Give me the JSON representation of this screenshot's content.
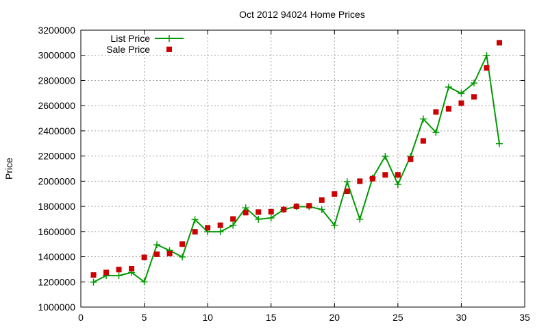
{
  "chart_data": {
    "type": "line",
    "title": "Oct 2012 94024 Home Prices",
    "xlabel": "",
    "ylabel": "Price",
    "xlim": [
      0,
      35
    ],
    "ylim": [
      1000000,
      3200000
    ],
    "xticks": [
      0,
      5,
      10,
      15,
      20,
      25,
      30,
      35
    ],
    "yticks": [
      1000000,
      1200000,
      1400000,
      1600000,
      1800000,
      2000000,
      2200000,
      2400000,
      2600000,
      2800000,
      3000000,
      3200000
    ],
    "grid": true,
    "legend_position": "top-left",
    "series": [
      {
        "name": "List Price",
        "style": "line-with-plus-markers",
        "color": "#009900",
        "x": [
          1,
          2,
          3,
          4,
          5,
          6,
          7,
          8,
          9,
          10,
          11,
          12,
          13,
          14,
          15,
          16,
          17,
          18,
          19,
          20,
          21,
          22,
          23,
          24,
          25,
          26,
          27,
          28,
          29,
          30,
          31,
          32,
          33
        ],
        "values": [
          1198000,
          1250000,
          1250000,
          1275000,
          1200000,
          1495000,
          1450000,
          1398000,
          1695000,
          1598000,
          1598000,
          1650000,
          1788000,
          1698000,
          1708000,
          1775000,
          1798000,
          1798000,
          1775000,
          1650000,
          1995000,
          1698000,
          2025000,
          2198000,
          1975000,
          2198000,
          2495000,
          2388000,
          2748000,
          2698000,
          2780000,
          2998000,
          2298000
        ]
      },
      {
        "name": "Sale Price",
        "style": "square-markers",
        "color": "#cc0000",
        "x": [
          1,
          2,
          3,
          4,
          5,
          6,
          7,
          8,
          9,
          10,
          11,
          12,
          13,
          14,
          15,
          16,
          17,
          18,
          19,
          20,
          21,
          22,
          23,
          24,
          25,
          26,
          27,
          28,
          29,
          30,
          31,
          32,
          33
        ],
        "values": [
          1255000,
          1275000,
          1298000,
          1305000,
          1395000,
          1420000,
          1425000,
          1500000,
          1598000,
          1630000,
          1650000,
          1700000,
          1750000,
          1755000,
          1758000,
          1775000,
          1800000,
          1805000,
          1850000,
          1898000,
          1920000,
          2000000,
          2020000,
          2050000,
          2050000,
          2175000,
          2320000,
          2550000,
          2575000,
          2620000,
          2670000,
          2900000,
          3100000
        ]
      }
    ]
  }
}
